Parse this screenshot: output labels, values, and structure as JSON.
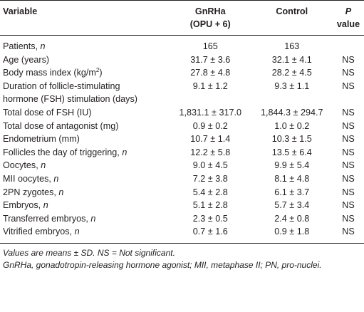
{
  "header": {
    "variable": "Variable",
    "gnrha": [
      "GnRHa",
      "(OPU + 6)"
    ],
    "control": "Control",
    "p": [
      "P",
      "value"
    ]
  },
  "rows": [
    {
      "label": [
        "Patients, ",
        "n"
      ],
      "gnrha": "165",
      "control": "163"
    },
    {
      "label": [
        "Age (years)"
      ],
      "gnrha": "31.7 ± 3.6",
      "control": "32.1 ± 4.1",
      "p": "NS"
    },
    {
      "label": [
        "Body mass index (kg/m",
        "2",
        ")"
      ],
      "gnrha": "27.8 ± 4.8",
      "control": "28.2 ± 4.5",
      "p": "NS"
    },
    {
      "label": [
        "Duration of follicle-stimulating",
        "hormone (FSH) stimulation (days)"
      ],
      "gnrha": "9.1 ± 1.2",
      "control": "9.3 ± 1.1",
      "p": "NS"
    },
    {
      "label": [
        "Total dose of FSH (IU)"
      ],
      "gnrha": "1,831.1 ± 317.0",
      "control": "1,844.3 ± 294.7",
      "p": "NS"
    },
    {
      "label": [
        "Total dose of antagonist (mg)"
      ],
      "gnrha": "0.9 ± 0.2",
      "control": "1.0 ± 0.2",
      "p": "NS"
    },
    {
      "label": [
        "Endometrium (mm)"
      ],
      "gnrha": "10.7 ± 1.4",
      "control": "10.3 ± 1.5",
      "p": "NS"
    },
    {
      "label": [
        "Follicles the day of triggering, ",
        "n"
      ],
      "gnrha": "12.2 ± 5.8",
      "control": "13.5 ± 6.4",
      "p": "NS"
    },
    {
      "label": [
        "Oocytes, ",
        "n"
      ],
      "gnrha": "9.0 ± 4.5",
      "control": "9.9 ± 5.4",
      "p": "NS"
    },
    {
      "label": [
        "MII oocytes, ",
        "n"
      ],
      "gnrha": "7.2 ± 3.8",
      "control": "8.1 ± 4.8",
      "p": "NS"
    },
    {
      "label": [
        "2PN zygotes, ",
        "n"
      ],
      "gnrha": "5.4 ± 2.8",
      "control": "6.1 ± 3.7",
      "p": "NS"
    },
    {
      "label": [
        "Embryos, ",
        "n"
      ],
      "gnrha": "5.1 ± 2.8",
      "control": "5.7 ± 3.4",
      "p": "NS"
    },
    {
      "label": [
        "Transferred embryos, ",
        "n"
      ],
      "gnrha": "2.3 ± 0.5",
      "control": "2.4 ± 0.8",
      "p": "NS"
    },
    {
      "label": [
        "Vitrified embryos, ",
        "n"
      ],
      "gnrha": "0.7 ± 1.6",
      "control": "0.9 ± 1.8",
      "p": "NS"
    }
  ],
  "footnotes": [
    "Values are means ± SD. NS = Not significant.",
    "GnRHa, gonadotropin-releasing hormone agonist; MII, metaphase II; PN, pro-nuclei."
  ]
}
